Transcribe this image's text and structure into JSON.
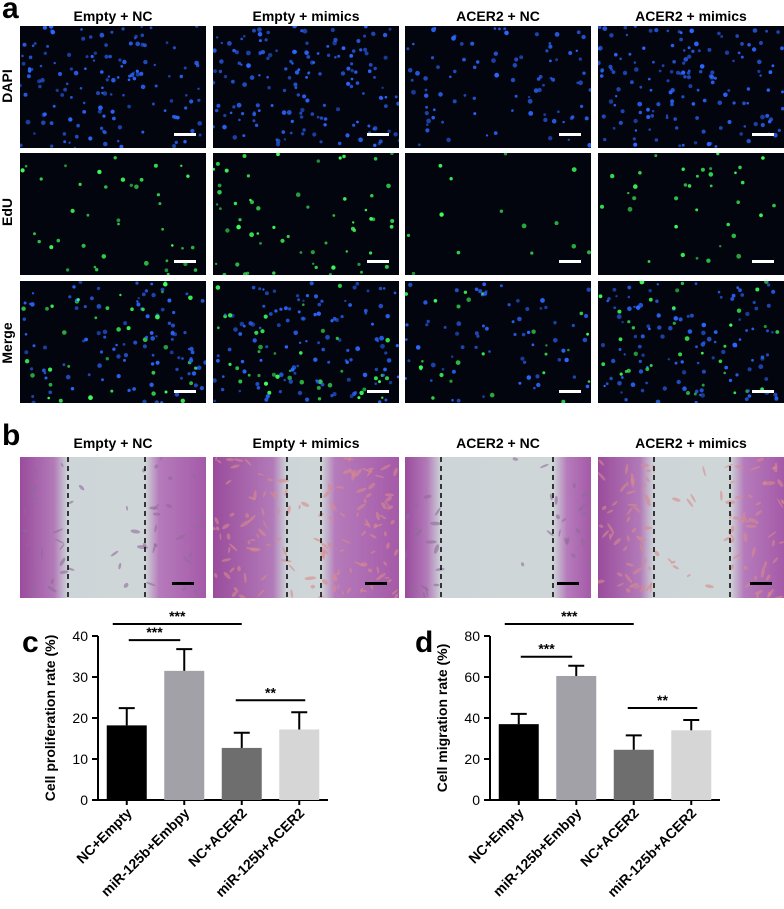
{
  "figure": {
    "panel_labels": {
      "a": "a",
      "b": "b",
      "c": "c",
      "d": "d"
    },
    "columns": [
      "Empty + NC",
      "Empty + mimics",
      "ACER2 + NC",
      "ACER2 + mimics"
    ],
    "fluorescence_rows": [
      "DAPI",
      "EdU",
      "Merge"
    ],
    "colors": {
      "nucleus_blue": "#2b66ff",
      "edu_green": "#3cff5a",
      "tissue_pink": "#b06ab8",
      "wound_gap": "#c9d3d6"
    },
    "wound_widths": [
      "wide",
      "narrow",
      "wide",
      "narrow"
    ]
  },
  "chart_data": [
    {
      "type": "bar",
      "panel": "c",
      "categories": [
        "NC+Empty",
        "miR-125b+Embpy",
        "NC+ACER2",
        "miR-125b+ACER2"
      ],
      "values": [
        18.2,
        31.5,
        12.7,
        17.2
      ],
      "errors": [
        4.2,
        5.3,
        3.7,
        4.2
      ],
      "ylabel": "Cell proliferation rate (%)",
      "xlabel": "",
      "ylim": [
        0,
        40
      ],
      "yticks": [
        "0",
        "10",
        "20",
        "30",
        "40"
      ],
      "bar_colors": [
        "#000000",
        "#a2a1a8",
        "#6e6e6e",
        "#d6d6d6"
      ],
      "significance": [
        {
          "from": 0,
          "to": 1,
          "label": "***"
        },
        {
          "from": 0,
          "to": 2,
          "label": "***"
        },
        {
          "from": 2,
          "to": 3,
          "label": "**"
        }
      ],
      "grid": false
    },
    {
      "type": "bar",
      "panel": "d",
      "categories": [
        "NC+Empty",
        "miR-125b+Embpy",
        "NC+ACER2",
        "miR-125b+ACER2"
      ],
      "values": [
        37.0,
        60.5,
        24.5,
        34.0
      ],
      "errors": [
        5.0,
        5.0,
        7.0,
        5.0
      ],
      "ylabel": "Cell migration rate (%)",
      "xlabel": "",
      "ylim": [
        0,
        80
      ],
      "yticks": [
        "0",
        "20",
        "40",
        "60",
        "80"
      ],
      "bar_colors": [
        "#000000",
        "#a2a1a8",
        "#6e6e6e",
        "#d6d6d6"
      ],
      "significance": [
        {
          "from": 0,
          "to": 1,
          "label": "***"
        },
        {
          "from": 0,
          "to": 2,
          "label": "***"
        },
        {
          "from": 2,
          "to": 3,
          "label": "**"
        }
      ],
      "grid": false
    }
  ]
}
